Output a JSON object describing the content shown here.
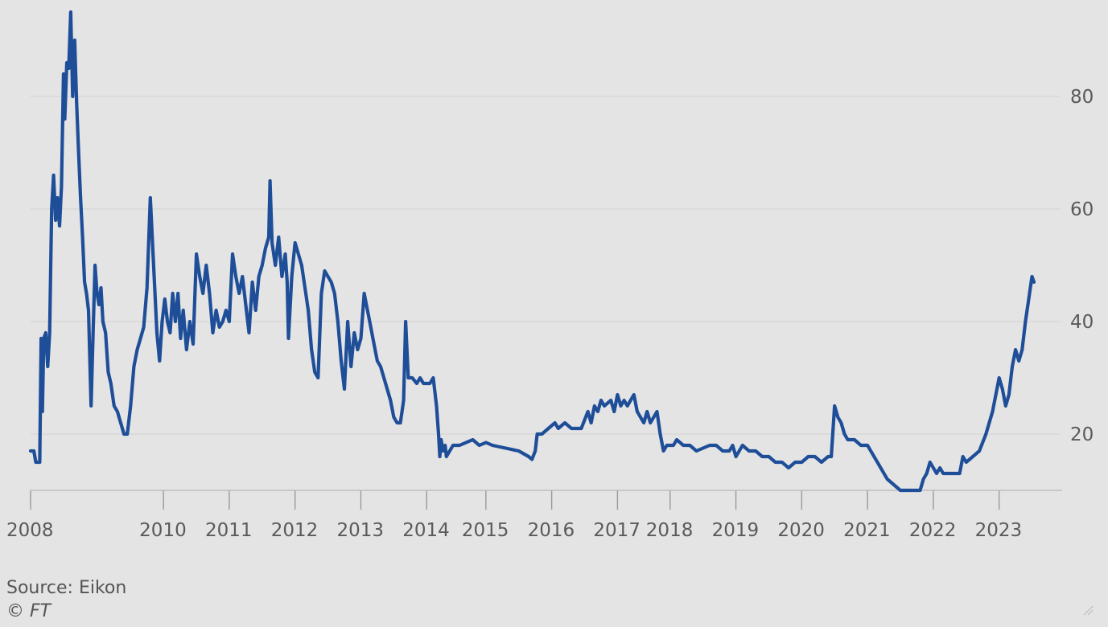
{
  "chart_data": {
    "type": "line",
    "title": "",
    "xlabel": "",
    "ylabel": "",
    "x_tick_labels": [
      "2008",
      "2010",
      "2011",
      "2012",
      "2013",
      "2014",
      "2015",
      "2016",
      "2017",
      "2018",
      "2019",
      "2020",
      "2021",
      "2022",
      "2023"
    ],
    "x_tick_values": [
      2007.98,
      2010.0,
      2011.0,
      2012.0,
      2013.0,
      2014.0,
      2014.9,
      2015.9,
      2016.9,
      2017.7,
      2018.7,
      2019.7,
      2020.7,
      2021.7,
      2022.7
    ],
    "y_ticks": [
      20,
      40,
      60,
      80
    ],
    "xlim": [
      2007.98,
      2023.28
    ],
    "ylim": [
      10,
      95
    ],
    "grid": true,
    "y_axis_side": "right",
    "series": [
      {
        "color": "#1f4e99",
        "points": [
          [
            2007.98,
            17
          ],
          [
            2008.03,
            17
          ],
          [
            2008.06,
            15
          ],
          [
            2008.12,
            15
          ],
          [
            2008.14,
            37
          ],
          [
            2008.16,
            24
          ],
          [
            2008.18,
            37
          ],
          [
            2008.21,
            38
          ],
          [
            2008.24,
            32
          ],
          [
            2008.27,
            38
          ],
          [
            2008.3,
            60
          ],
          [
            2008.33,
            66
          ],
          [
            2008.36,
            58
          ],
          [
            2008.39,
            62
          ],
          [
            2008.42,
            57
          ],
          [
            2008.45,
            64
          ],
          [
            2008.48,
            84
          ],
          [
            2008.5,
            76
          ],
          [
            2008.53,
            86
          ],
          [
            2008.56,
            85
          ],
          [
            2008.59,
            95
          ],
          [
            2008.62,
            80
          ],
          [
            2008.65,
            90
          ],
          [
            2008.68,
            79
          ],
          [
            2008.71,
            70
          ],
          [
            2008.74,
            62
          ],
          [
            2008.77,
            55
          ],
          [
            2008.8,
            47
          ],
          [
            2008.83,
            45
          ],
          [
            2008.86,
            42
          ],
          [
            2008.9,
            25
          ],
          [
            2008.93,
            38
          ],
          [
            2008.96,
            50
          ],
          [
            2008.99,
            45
          ],
          [
            2009.02,
            43
          ],
          [
            2009.05,
            46
          ],
          [
            2009.08,
            40
          ],
          [
            2009.12,
            38
          ],
          [
            2009.16,
            31
          ],
          [
            2009.2,
            29
          ],
          [
            2009.25,
            25
          ],
          [
            2009.3,
            24
          ],
          [
            2009.35,
            22
          ],
          [
            2009.4,
            20
          ],
          [
            2009.45,
            20
          ],
          [
            2009.5,
            25
          ],
          [
            2009.55,
            32
          ],
          [
            2009.6,
            35
          ],
          [
            2009.65,
            37
          ],
          [
            2009.7,
            39
          ],
          [
            2009.75,
            46
          ],
          [
            2009.8,
            62
          ],
          [
            2009.85,
            50
          ],
          [
            2009.9,
            38
          ],
          [
            2009.94,
            33
          ],
          [
            2009.98,
            40
          ],
          [
            2010.02,
            44
          ],
          [
            2010.06,
            40
          ],
          [
            2010.1,
            38
          ],
          [
            2010.14,
            45
          ],
          [
            2010.18,
            40
          ],
          [
            2010.22,
            45
          ],
          [
            2010.26,
            37
          ],
          [
            2010.3,
            42
          ],
          [
            2010.35,
            35
          ],
          [
            2010.4,
            40
          ],
          [
            2010.45,
            36
          ],
          [
            2010.5,
            52
          ],
          [
            2010.55,
            48
          ],
          [
            2010.6,
            45
          ],
          [
            2010.65,
            50
          ],
          [
            2010.7,
            45
          ],
          [
            2010.75,
            38
          ],
          [
            2010.8,
            42
          ],
          [
            2010.85,
            39
          ],
          [
            2010.9,
            40
          ],
          [
            2010.95,
            42
          ],
          [
            2011.0,
            40
          ],
          [
            2011.05,
            52
          ],
          [
            2011.1,
            48
          ],
          [
            2011.15,
            45
          ],
          [
            2011.2,
            48
          ],
          [
            2011.25,
            43
          ],
          [
            2011.3,
            38
          ],
          [
            2011.35,
            47
          ],
          [
            2011.4,
            42
          ],
          [
            2011.45,
            48
          ],
          [
            2011.5,
            50
          ],
          [
            2011.55,
            53
          ],
          [
            2011.6,
            55
          ],
          [
            2011.62,
            65
          ],
          [
            2011.65,
            54
          ],
          [
            2011.7,
            50
          ],
          [
            2011.75,
            55
          ],
          [
            2011.8,
            48
          ],
          [
            2011.85,
            52
          ],
          [
            2011.88,
            47
          ],
          [
            2011.9,
            37
          ],
          [
            2011.95,
            48
          ],
          [
            2012.0,
            54
          ],
          [
            2012.05,
            52
          ],
          [
            2012.1,
            50
          ],
          [
            2012.15,
            46
          ],
          [
            2012.2,
            42
          ],
          [
            2012.25,
            35
          ],
          [
            2012.3,
            31
          ],
          [
            2012.35,
            30
          ],
          [
            2012.4,
            45
          ],
          [
            2012.45,
            49
          ],
          [
            2012.5,
            48
          ],
          [
            2012.55,
            47
          ],
          [
            2012.6,
            45
          ],
          [
            2012.65,
            40
          ],
          [
            2012.7,
            33
          ],
          [
            2012.75,
            28
          ],
          [
            2012.8,
            40
          ],
          [
            2012.85,
            32
          ],
          [
            2012.9,
            38
          ],
          [
            2012.95,
            35
          ],
          [
            2013.0,
            37
          ],
          [
            2013.05,
            45
          ],
          [
            2013.1,
            42
          ],
          [
            2013.15,
            39
          ],
          [
            2013.2,
            36
          ],
          [
            2013.25,
            33
          ],
          [
            2013.3,
            32
          ],
          [
            2013.35,
            30
          ],
          [
            2013.4,
            28
          ],
          [
            2013.45,
            26
          ],
          [
            2013.5,
            23
          ],
          [
            2013.55,
            22
          ],
          [
            2013.6,
            22
          ],
          [
            2013.65,
            26
          ],
          [
            2013.68,
            40
          ],
          [
            2013.72,
            30
          ],
          [
            2013.78,
            30
          ],
          [
            2013.85,
            29
          ],
          [
            2013.9,
            30
          ],
          [
            2013.95,
            29
          ],
          [
            2014.0,
            29
          ],
          [
            2014.05,
            29
          ],
          [
            2014.1,
            30
          ],
          [
            2014.15,
            25
          ],
          [
            2014.18,
            20
          ],
          [
            2014.2,
            16
          ],
          [
            2014.22,
            19
          ],
          [
            2014.25,
            17
          ],
          [
            2014.28,
            18
          ],
          [
            2014.3,
            16
          ],
          [
            2014.35,
            17
          ],
          [
            2014.4,
            18
          ],
          [
            2014.5,
            18
          ],
          [
            2014.6,
            18.5
          ],
          [
            2014.7,
            19
          ],
          [
            2014.8,
            18
          ],
          [
            2014.9,
            18.5
          ],
          [
            2015.0,
            18
          ],
          [
            2015.2,
            17.5
          ],
          [
            2015.4,
            17
          ],
          [
            2015.55,
            16
          ],
          [
            2015.6,
            15.5
          ],
          [
            2015.65,
            17
          ],
          [
            2015.68,
            20
          ],
          [
            2015.75,
            20
          ],
          [
            2015.85,
            21
          ],
          [
            2015.95,
            22
          ],
          [
            2016.0,
            21
          ],
          [
            2016.1,
            22
          ],
          [
            2016.2,
            21
          ],
          [
            2016.35,
            21
          ],
          [
            2016.45,
            24
          ],
          [
            2016.5,
            22
          ],
          [
            2016.55,
            25
          ],
          [
            2016.6,
            24
          ],
          [
            2016.65,
            26
          ],
          [
            2016.7,
            25
          ],
          [
            2016.8,
            26
          ],
          [
            2016.85,
            24
          ],
          [
            2016.9,
            27
          ],
          [
            2016.95,
            25
          ],
          [
            2017.0,
            26
          ],
          [
            2017.05,
            25
          ],
          [
            2017.1,
            26
          ],
          [
            2017.15,
            27
          ],
          [
            2017.2,
            24
          ],
          [
            2017.3,
            22
          ],
          [
            2017.35,
            24
          ],
          [
            2017.4,
            22
          ],
          [
            2017.5,
            24
          ],
          [
            2017.55,
            20
          ],
          [
            2017.6,
            17
          ],
          [
            2017.65,
            18
          ],
          [
            2017.75,
            18
          ],
          [
            2017.8,
            19
          ],
          [
            2017.9,
            18
          ],
          [
            2018.0,
            18
          ],
          [
            2018.1,
            17
          ],
          [
            2018.2,
            17.5
          ],
          [
            2018.3,
            18
          ],
          [
            2018.4,
            18
          ],
          [
            2018.5,
            17
          ],
          [
            2018.6,
            17
          ],
          [
            2018.65,
            18
          ],
          [
            2018.7,
            16
          ],
          [
            2018.8,
            18
          ],
          [
            2018.9,
            17
          ],
          [
            2019.0,
            17
          ],
          [
            2019.1,
            16
          ],
          [
            2019.2,
            16
          ],
          [
            2019.3,
            15
          ],
          [
            2019.4,
            15
          ],
          [
            2019.5,
            14
          ],
          [
            2019.6,
            15
          ],
          [
            2019.7,
            15
          ],
          [
            2019.8,
            16
          ],
          [
            2019.9,
            16
          ],
          [
            2020.0,
            15
          ],
          [
            2020.1,
            16
          ],
          [
            2020.15,
            16
          ],
          [
            2020.2,
            25
          ],
          [
            2020.25,
            23
          ],
          [
            2020.3,
            22
          ],
          [
            2020.35,
            20
          ],
          [
            2020.4,
            19
          ],
          [
            2020.5,
            19
          ],
          [
            2020.6,
            18
          ],
          [
            2020.7,
            18
          ],
          [
            2020.8,
            16
          ],
          [
            2020.9,
            14
          ],
          [
            2020.95,
            13
          ],
          [
            2021.0,
            12
          ],
          [
            2021.1,
            11
          ],
          [
            2021.2,
            10
          ],
          [
            2021.3,
            10
          ],
          [
            2021.4,
            10
          ],
          [
            2021.5,
            10
          ],
          [
            2021.55,
            12
          ],
          [
            2021.6,
            13
          ],
          [
            2021.65,
            15
          ],
          [
            2021.7,
            14
          ],
          [
            2021.75,
            13
          ],
          [
            2021.8,
            14
          ],
          [
            2021.85,
            13
          ],
          [
            2021.9,
            13
          ],
          [
            2022.0,
            13
          ],
          [
            2022.1,
            13
          ],
          [
            2022.15,
            16
          ],
          [
            2022.2,
            15
          ],
          [
            2022.3,
            16
          ],
          [
            2022.4,
            17
          ],
          [
            2022.5,
            20
          ],
          [
            2022.55,
            22
          ],
          [
            2022.6,
            24
          ],
          [
            2022.65,
            27
          ],
          [
            2022.7,
            30
          ],
          [
            2022.75,
            28
          ],
          [
            2022.8,
            25
          ],
          [
            2022.85,
            27
          ],
          [
            2022.9,
            32
          ],
          [
            2022.95,
            35
          ],
          [
            2023.0,
            33
          ],
          [
            2023.05,
            35
          ],
          [
            2023.1,
            40
          ],
          [
            2023.15,
            44
          ],
          [
            2023.2,
            48
          ],
          [
            2023.23,
            47
          ]
        ]
      }
    ]
  },
  "footer": {
    "source": "Source: Eikon",
    "credit": "© FT"
  }
}
